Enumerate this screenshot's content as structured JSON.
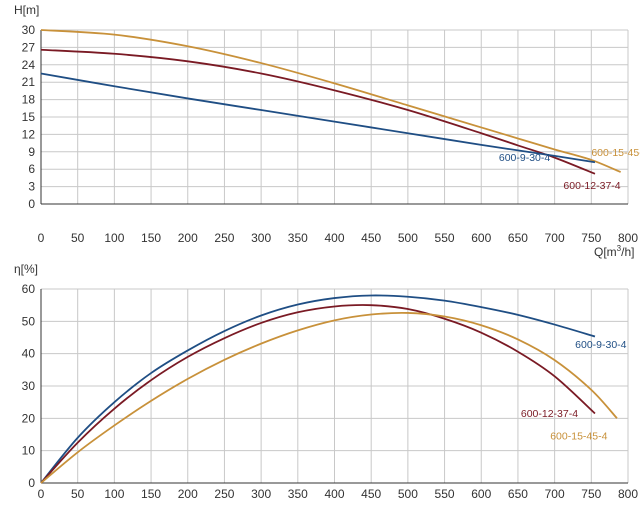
{
  "chart_data": [
    {
      "type": "line",
      "title": "",
      "ylabel": "H[m]",
      "xlabel_html": [
        "Q[m",
        "3",
        "/h]"
      ],
      "xlim": [
        0,
        800
      ],
      "ylim": [
        0,
        30
      ],
      "xticks": [
        0,
        50,
        100,
        150,
        200,
        250,
        300,
        350,
        400,
        450,
        500,
        550,
        600,
        650,
        700,
        750,
        800
      ],
      "yticks": [
        0,
        3,
        6,
        9,
        12,
        15,
        18,
        21,
        24,
        27,
        30
      ],
      "grid": true,
      "series": [
        {
          "name": "600-15-45-4",
          "color": "#c8913a",
          "label_at": [
            750,
            8.3
          ],
          "x": [
            0,
            100,
            200,
            300,
            400,
            500,
            600,
            650,
            700,
            750,
            790
          ],
          "y": [
            30.0,
            29.2,
            27.2,
            24.3,
            20.8,
            17.0,
            13.2,
            11.3,
            9.4,
            7.6,
            5.5
          ]
        },
        {
          "name": "600-12-37-4",
          "color": "#7a1a24",
          "label_at": [
            712,
            2.6
          ],
          "x": [
            0,
            100,
            200,
            300,
            400,
            500,
            600,
            650,
            700,
            755
          ],
          "y": [
            26.6,
            25.9,
            24.6,
            22.5,
            19.6,
            16.2,
            12.2,
            10.1,
            8.0,
            5.2
          ]
        },
        {
          "name": "600-9-30-4",
          "color": "#1f4e84",
          "label_at": [
            624,
            7.4
          ],
          "x": [
            0,
            100,
            200,
            300,
            400,
            500,
            600,
            700,
            755
          ],
          "y": [
            22.5,
            20.3,
            18.2,
            16.2,
            14.2,
            12.2,
            10.2,
            8.3,
            7.2
          ]
        }
      ]
    },
    {
      "type": "line",
      "title": "",
      "ylabel": "η[%]",
      "xlim": [
        0,
        800
      ],
      "ylim": [
        0,
        60
      ],
      "xticks": [
        0,
        50,
        100,
        150,
        200,
        250,
        300,
        350,
        400,
        450,
        500,
        550,
        600,
        650,
        700,
        750,
        800
      ],
      "yticks": [
        0,
        10,
        20,
        30,
        40,
        50,
        60
      ],
      "grid": true,
      "series": [
        {
          "name": "600-9-30-4",
          "color": "#1f4e84",
          "label_at": [
            728,
            41.7
          ],
          "x": [
            0,
            50,
            100,
            150,
            200,
            250,
            300,
            350,
            400,
            450,
            500,
            550,
            600,
            650,
            700,
            755
          ],
          "y": [
            0,
            14.0,
            25.0,
            34.0,
            41.0,
            47.0,
            51.8,
            55.2,
            57.2,
            58.0,
            57.6,
            56.4,
            54.4,
            52.0,
            49.0,
            45.3
          ]
        },
        {
          "name": "600-12-37-4",
          "color": "#7a1a24",
          "label_at": [
            654,
            20.4
          ],
          "x": [
            0,
            50,
            100,
            150,
            200,
            250,
            300,
            350,
            400,
            450,
            500,
            550,
            600,
            650,
            700,
            755
          ],
          "y": [
            0,
            12.5,
            23.0,
            31.8,
            39.0,
            44.8,
            49.5,
            52.8,
            54.6,
            55.0,
            53.8,
            50.8,
            46.5,
            40.6,
            33.0,
            21.5
          ]
        },
        {
          "name": "600-15-45-4",
          "color": "#c8913a",
          "label_at": [
            694,
            13.5
          ],
          "x": [
            0,
            50,
            100,
            150,
            200,
            250,
            300,
            350,
            400,
            450,
            500,
            550,
            600,
            650,
            700,
            750,
            785
          ],
          "y": [
            0,
            9.5,
            17.8,
            25.4,
            32.2,
            38.1,
            43.1,
            47.2,
            50.3,
            52.1,
            52.6,
            51.5,
            48.8,
            44.4,
            38.0,
            28.8,
            20.0
          ]
        }
      ]
    }
  ]
}
